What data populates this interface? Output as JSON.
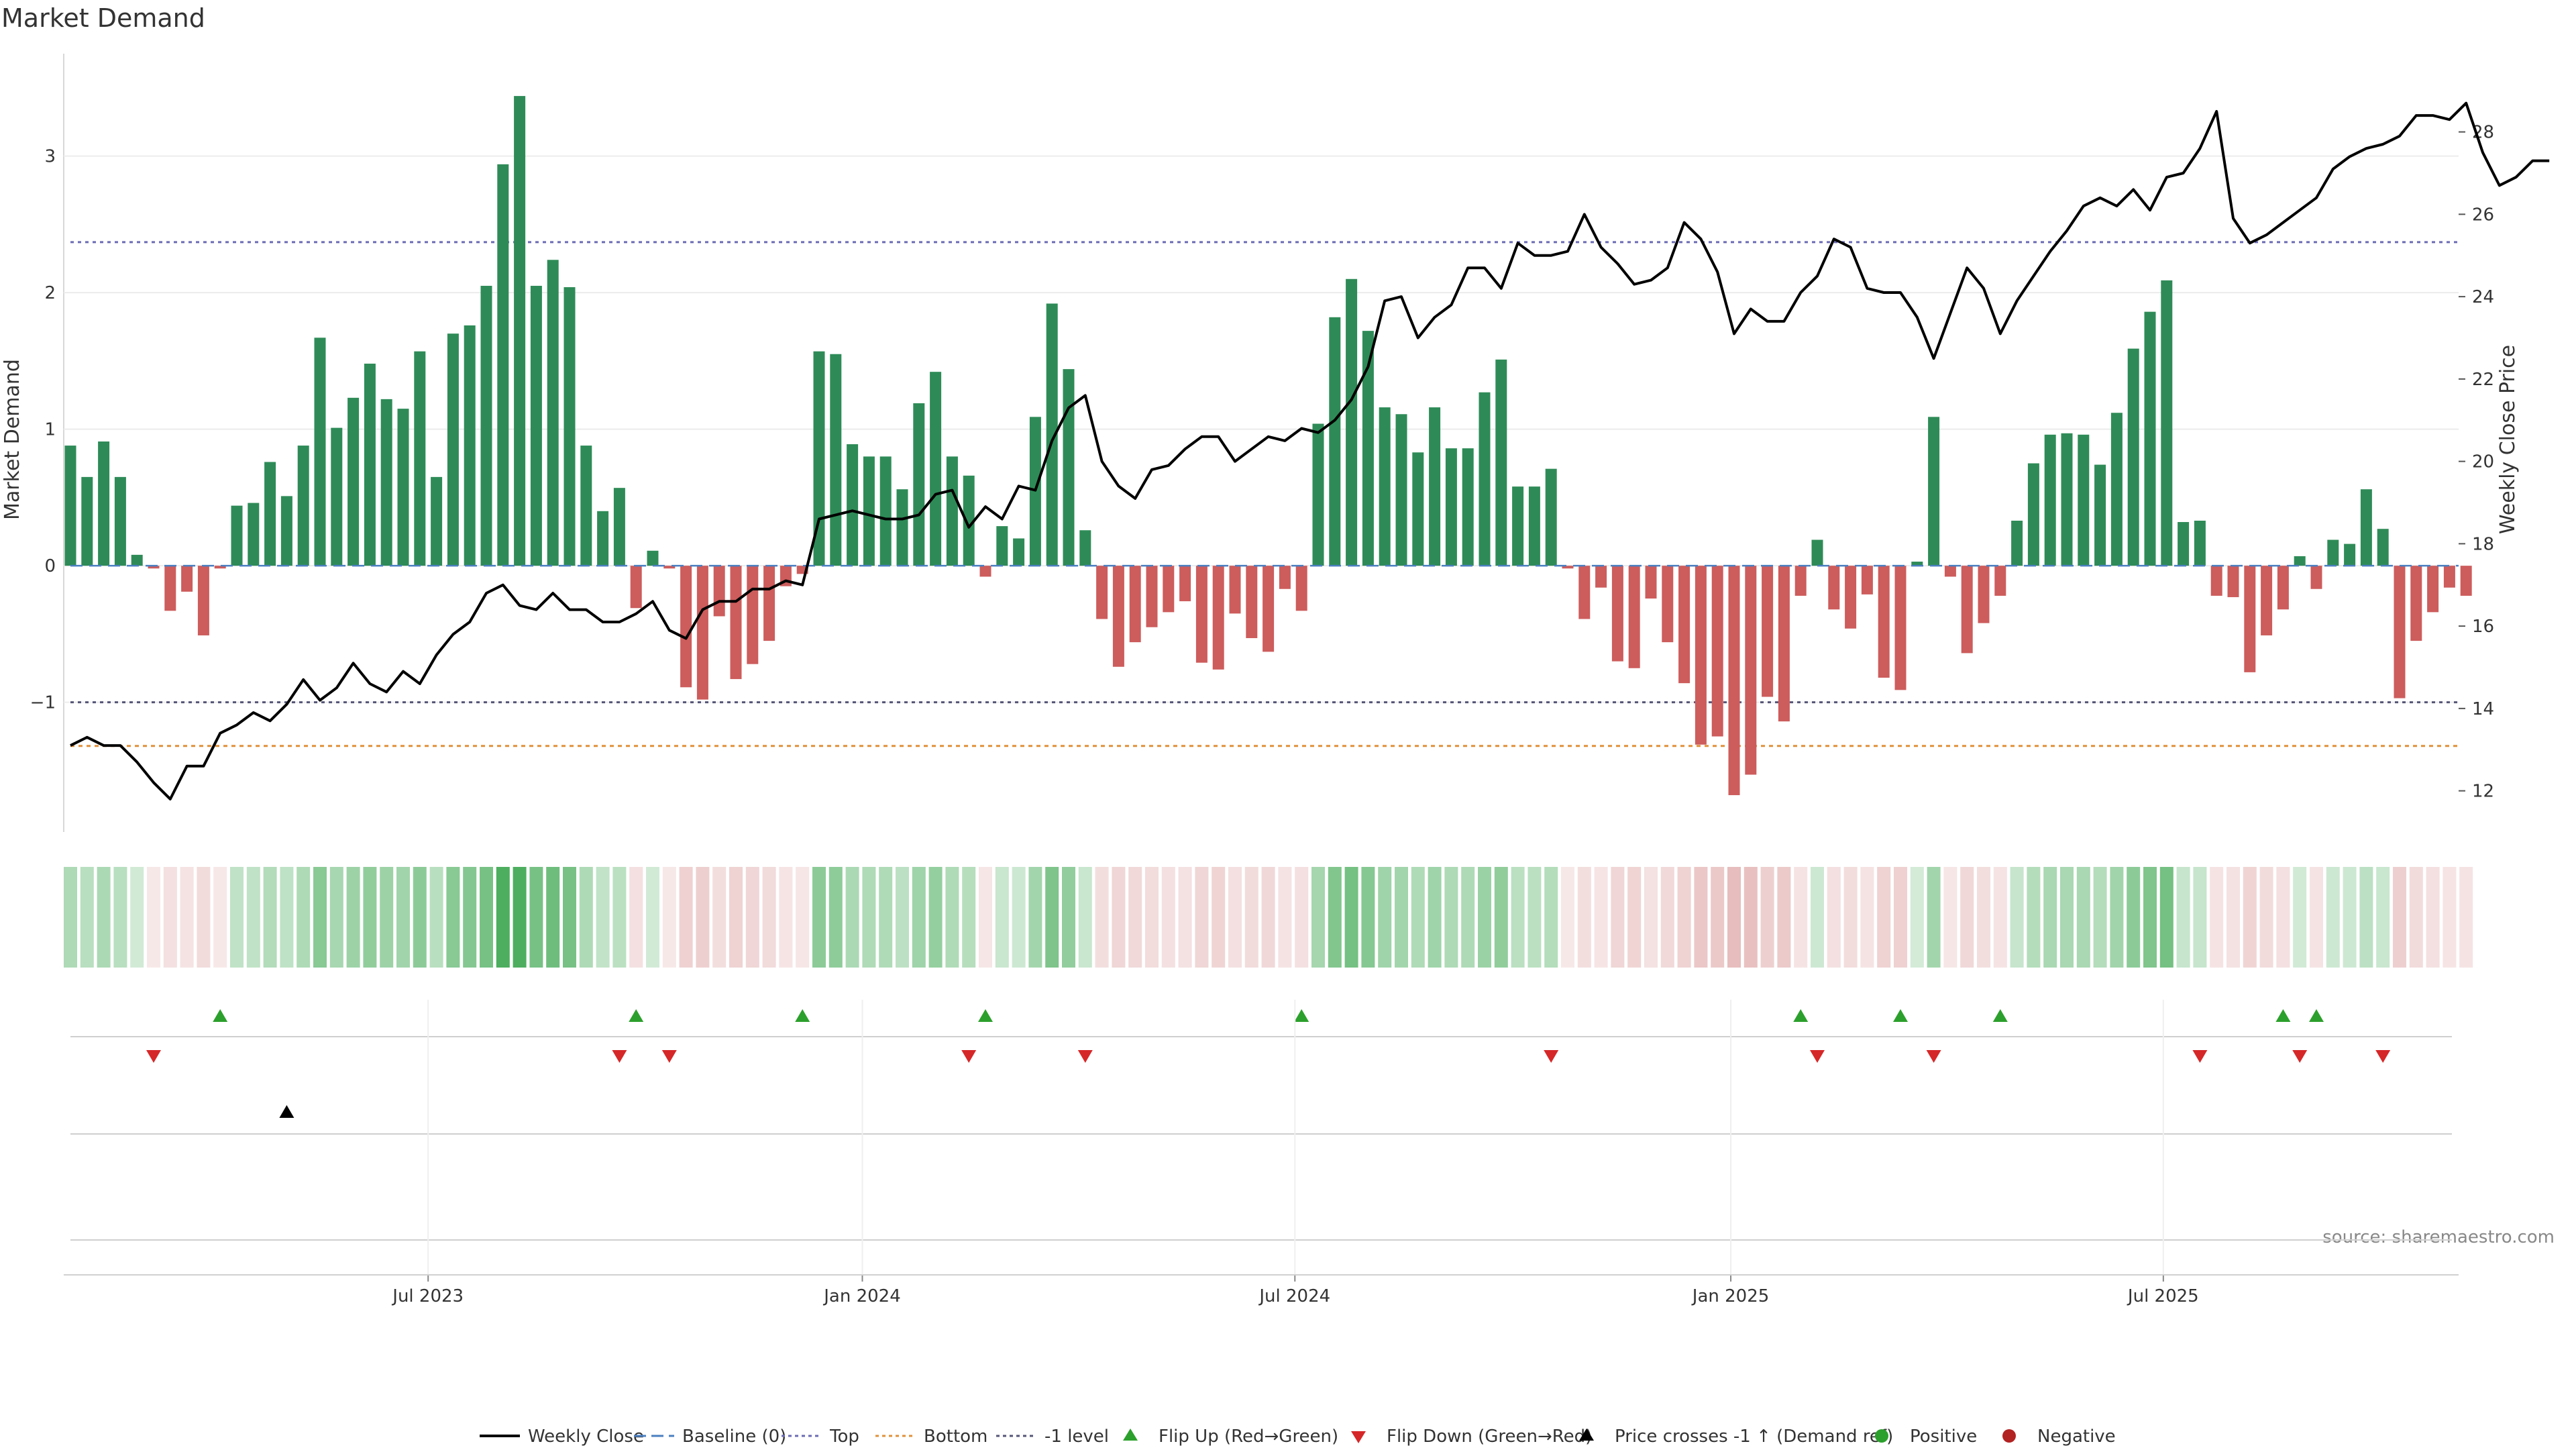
{
  "chart_data": {
    "type": "bar+line",
    "title": "Market Demand",
    "ylabel_left": "Market Demand",
    "ylabel_right": "Weekly Close Price",
    "y_left_ticks": [
      3,
      2,
      1,
      0,
      -1
    ],
    "y_left_tick_labels": [
      "3",
      "2",
      "1",
      "0",
      "−1"
    ],
    "y_left_range": [
      -1.95,
      3.75
    ],
    "y_right_ticks": [
      28,
      26,
      24,
      22,
      20,
      18,
      16,
      14,
      12
    ],
    "y_right_range": [
      11,
      29.9
    ],
    "x_ticks": [
      {
        "label": "Jul 2023",
        "week": 21.5
      },
      {
        "label": "Jan 2024",
        "week": 47.6
      },
      {
        "label": "Jul 2024",
        "week": 73.6
      },
      {
        "label": "Jan 2025",
        "week": 99.8
      },
      {
        "label": "Jul 2025",
        "week": 125.8
      }
    ],
    "reference_lines": {
      "top": 2.37,
      "bottom": -1.32,
      "minus_one_level": -1.0,
      "baseline": 0
    },
    "demand": [
      0.88,
      0.65,
      0.91,
      0.65,
      0.08,
      -0.02,
      -0.33,
      -0.19,
      -0.51,
      -0.02,
      0.44,
      0.46,
      0.76,
      0.51,
      0.88,
      1.67,
      1.01,
      1.23,
      1.48,
      1.22,
      1.15,
      1.57,
      0.65,
      1.7,
      1.76,
      2.05,
      2.94,
      3.44,
      2.05,
      2.24,
      2.04,
      0.88,
      0.4,
      0.57,
      -0.31,
      0.11,
      -0.02,
      -0.89,
      -0.98,
      -0.37,
      -0.83,
      -0.72,
      -0.55,
      -0.15,
      -0.06,
      1.57,
      1.55,
      0.89,
      0.8,
      0.8,
      0.56,
      1.19,
      1.42,
      0.8,
      0.66,
      -0.08,
      0.29,
      0.2,
      1.09,
      1.92,
      1.44,
      0.26,
      -0.39,
      -0.74,
      -0.56,
      -0.45,
      -0.34,
      -0.26,
      -0.71,
      -0.76,
      -0.35,
      -0.53,
      -0.63,
      -0.17,
      -0.33,
      1.04,
      1.82,
      2.1,
      1.72,
      1.16,
      1.11,
      0.83,
      1.16,
      0.86,
      0.86,
      1.27,
      1.51,
      0.58,
      0.58,
      0.71,
      -0.02,
      -0.39,
      -0.16,
      -0.7,
      -0.75,
      -0.24,
      -0.56,
      -0.86,
      -1.31,
      -1.25,
      -1.68,
      -1.53,
      -0.96,
      -1.14,
      -0.22,
      0.19,
      -0.32,
      -0.46,
      -0.21,
      -0.82,
      -0.91,
      0.03,
      1.09,
      -0.08,
      -0.64,
      -0.42,
      -0.22,
      0.33,
      0.75,
      0.96,
      0.97,
      0.96,
      0.74,
      1.12,
      1.59,
      1.86,
      2.09,
      0.32,
      0.33,
      -0.22,
      -0.23,
      -0.78,
      -0.51,
      -0.32,
      0.07,
      -0.17,
      0.19,
      0.16,
      0.56,
      0.27,
      -0.97,
      -0.55,
      -0.34,
      -0.16,
      -0.22
    ],
    "weekly_close": [
      13.1,
      13.3,
      13.1,
      13.1,
      12.7,
      12.2,
      11.8,
      12.6,
      12.6,
      13.4,
      13.6,
      13.9,
      13.7,
      14.1,
      14.7,
      14.2,
      14.5,
      15.1,
      14.6,
      14.4,
      14.9,
      14.6,
      15.3,
      15.8,
      16.1,
      16.8,
      17.0,
      16.5,
      16.4,
      16.8,
      16.4,
      16.4,
      16.1,
      16.1,
      16.3,
      16.6,
      15.9,
      15.7,
      16.4,
      16.6,
      16.6,
      16.9,
      16.9,
      17.1,
      17.0,
      18.6,
      18.7,
      18.8,
      18.7,
      18.6,
      18.6,
      18.7,
      19.2,
      19.3,
      18.4,
      18.9,
      18.6,
      19.4,
      19.3,
      20.5,
      21.3,
      21.6,
      20.0,
      19.4,
      19.1,
      19.8,
      19.9,
      20.3,
      20.6,
      20.6,
      20.0,
      20.3,
      20.6,
      20.5,
      20.8,
      20.7,
      21.0,
      21.5,
      22.3,
      23.9,
      24.0,
      23.0,
      23.5,
      23.8,
      24.7,
      24.7,
      24.2,
      25.3,
      25.0,
      25.0,
      25.1,
      26.0,
      25.2,
      24.8,
      24.3,
      24.4,
      24.7,
      25.8,
      25.4,
      24.6,
      23.1,
      23.7,
      23.4,
      23.4,
      24.1,
      24.5,
      25.4,
      25.2,
      24.2,
      24.1,
      24.1,
      23.5,
      22.5,
      23.6,
      24.7,
      24.2,
      23.1,
      23.9,
      24.5,
      25.1,
      25.6,
      26.2,
      26.4,
      26.2,
      26.6,
      26.1,
      26.9,
      27.0,
      27.6,
      28.5,
      25.9,
      25.3,
      25.5,
      25.8,
      26.1,
      26.4,
      27.1,
      27.4,
      27.6,
      27.7,
      27.9,
      28.4,
      28.4,
      28.3,
      28.7,
      27.5,
      26.7,
      26.9,
      27.3,
      27.3
    ],
    "flip_up_weeks": [
      9,
      34,
      44,
      55,
      74,
      104,
      110,
      116,
      133,
      135
    ],
    "flip_down_weeks": [
      5,
      33,
      36,
      54,
      61,
      89,
      105,
      112,
      128,
      134,
      139
    ],
    "price_crosses_weeks": [
      13
    ],
    "legend": [
      "Weekly Close",
      "Baseline (0)",
      "Top",
      "Bottom",
      "-1 level",
      "Flip Up (Red→Green)",
      "Flip Down (Green→Red)",
      "Price crosses -1 ↑ (Demand ref)",
      "Positive",
      "Negative"
    ],
    "source": "source: sharemaestro.com",
    "colors": {
      "positive_bar": "#2e8b57",
      "negative_bar": "#cd5c5c",
      "close_line": "#000000",
      "top_line": "#6b6bb5",
      "bottom_line": "#e0913a",
      "minus_one_line": "#555577",
      "baseline": "#4a7fc1",
      "flip_up": "#2ca02c",
      "flip_down": "#d62728",
      "price_cross": "#000000",
      "positive_dot": "#2ca02c",
      "negative_dot": "#b22222"
    }
  }
}
